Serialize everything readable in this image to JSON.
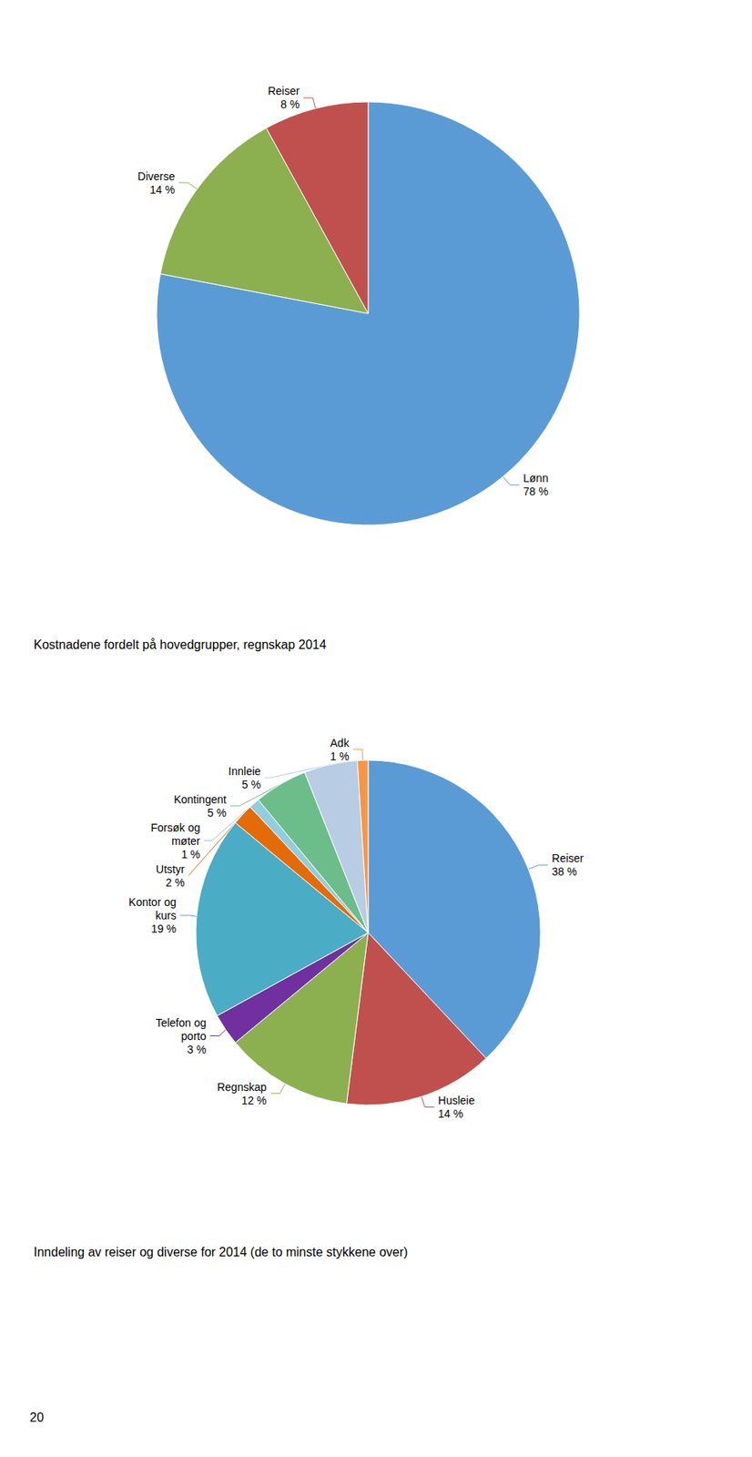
{
  "chart_data": [
    {
      "type": "pie",
      "title": "Kostnadene fordelt på hovedgrupper, regnskap 2014",
      "categories": [
        "Lønn",
        "Diverse",
        "Reiser"
      ],
      "values": [
        78,
        14,
        8
      ],
      "value_labels": [
        "78 %",
        "14 %",
        "8 %"
      ],
      "colors": [
        "#5b9bd5",
        "#8cb050",
        "#c0504d"
      ],
      "data_labels": true,
      "legend": false
    },
    {
      "type": "pie",
      "title": "Inndeling av reiser og diverse for 2014 (de to minste stykkene over)",
      "categories": [
        "Reiser",
        "Husleie",
        "Regnskap",
        "Telefon og\nporto",
        "Kontor og\nkurs",
        "Utstyr",
        "Forsøk og\nmøter",
        "Kontingent",
        "Innleie",
        "Adk"
      ],
      "values": [
        38,
        14,
        12,
        3,
        19,
        2,
        1,
        5,
        5,
        1
      ],
      "value_labels": [
        "38 %",
        "14 %",
        "12 %",
        "3 %",
        "19 %",
        "2 %",
        "1 %",
        "5 %",
        "5 %",
        "1 %"
      ],
      "colors": [
        "#5b9bd5",
        "#c0504d",
        "#8cb050",
        "#7030a0",
        "#4bacc6",
        "#e36c09",
        "#92cddc",
        "#6dbd8a",
        "#b8cce4",
        "#f79646"
      ],
      "data_labels": true,
      "legend": false,
      "annotations": [
        "20"
      ]
    }
  ]
}
